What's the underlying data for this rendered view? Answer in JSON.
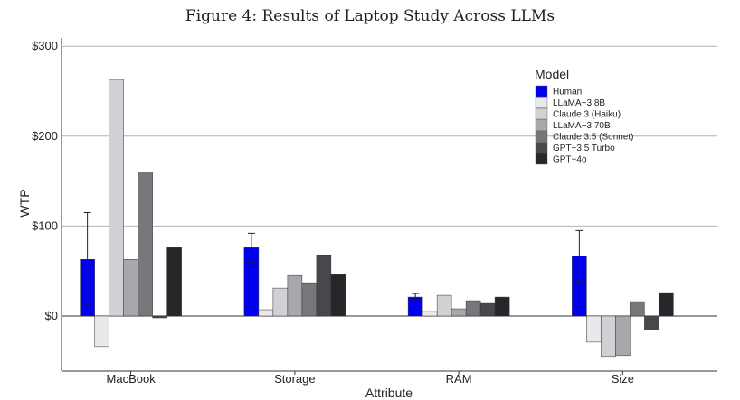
{
  "chart_data": {
    "type": "bar",
    "title": "Figure 4: Results of Laptop Study Across LLMs",
    "xlabel": "Attribute",
    "ylabel": "WTP",
    "ylim": [
      -62,
      305
    ],
    "yticks": [
      0,
      100,
      200,
      300
    ],
    "ytick_labels": [
      "$0",
      "$100",
      "$200",
      "$300"
    ],
    "grid": "horizontal",
    "legend_title": "Model",
    "legend_position": "top-right",
    "categories": [
      "MacBook",
      "Storage",
      "RAM",
      "Size"
    ],
    "series": [
      {
        "name": "Human",
        "color": "#0000ee",
        "values": [
          63,
          76,
          21,
          67
        ],
        "error_low": [
          12,
          60,
          17,
          38
        ],
        "error_high": [
          115,
          92,
          25,
          95
        ]
      },
      {
        "name": "LLaMA−3 8B",
        "color": "#e9e9ec",
        "values": [
          -34,
          7,
          5,
          -29
        ]
      },
      {
        "name": "Claude 3 (Haiku)",
        "color": "#cfd1d4",
        "values": [
          263,
          31,
          23,
          -45
        ]
      },
      {
        "name": "LLaMA−3 70B",
        "color": "#a6a8ab",
        "values": [
          63,
          45,
          8,
          -44
        ]
      },
      {
        "name": "Claude 3.5 (Sonnet)",
        "color": "#75777b",
        "values": [
          160,
          37,
          17,
          16
        ]
      },
      {
        "name": "GPT−3.5 Turbo",
        "color": "#46484b",
        "values": [
          -2,
          68,
          14,
          -15
        ]
      },
      {
        "name": "GPT−4o",
        "color": "#25272a",
        "values": [
          76,
          46,
          21,
          26
        ]
      }
    ]
  }
}
